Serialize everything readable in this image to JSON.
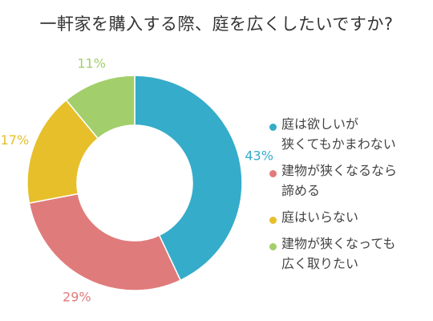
{
  "chart_data": {
    "type": "pie",
    "title": "一軒家を購入する際、庭を広くしたいですか?",
    "categories": [
      "庭は欲しいが\n狭くてもかまわない",
      "建物が狭くなるなら\n諦める",
      "庭はいらない",
      "建物が狭くなっても\n広く取りたい"
    ],
    "values": [
      43,
      29,
      17,
      11
    ],
    "value_labels": [
      "43%",
      "29%",
      "17%",
      "11%"
    ],
    "colors": [
      "#35acc9",
      "#e07b7b",
      "#e6bf2a",
      "#a2cf6b"
    ],
    "donut": true,
    "legend_position": "right"
  }
}
